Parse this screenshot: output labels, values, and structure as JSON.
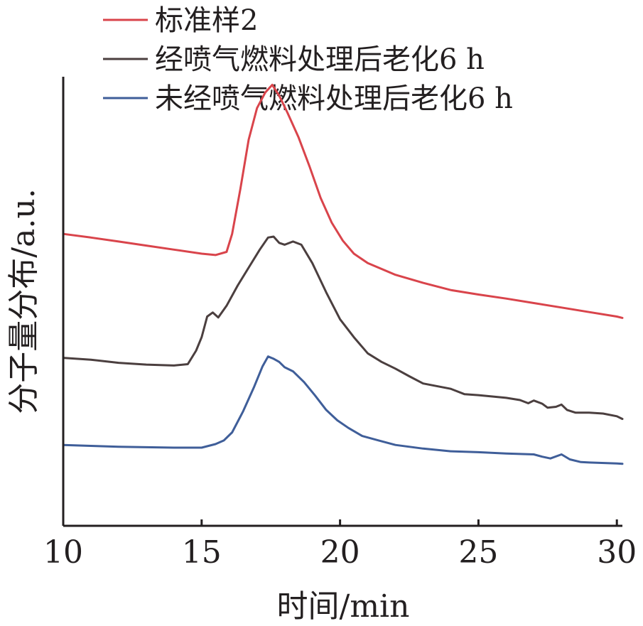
{
  "chart_data": {
    "type": "line",
    "title": "",
    "xlabel": "时间/min",
    "ylabel": "分子量分布/a.u.",
    "xlim": [
      10,
      30.2
    ],
    "ylim": [
      0,
      100
    ],
    "xticks": [
      10,
      15,
      20,
      25,
      30
    ],
    "y_ticks_shown": false,
    "grid": false,
    "legend_position": "top-left",
    "series": [
      {
        "name": "标准样2",
        "color": "#d9444b",
        "x": [
          10,
          11,
          12,
          13,
          14,
          15,
          15.5,
          15.9,
          16.1,
          16.4,
          16.7,
          17.0,
          17.3,
          17.55,
          17.8,
          18.1,
          18.5,
          18.9,
          19.3,
          19.7,
          20.1,
          20.5,
          21,
          22,
          23,
          24,
          25,
          26,
          27,
          28,
          29,
          30,
          30.2
        ],
        "y": [
          65.0,
          64.2,
          63.3,
          62.4,
          61.5,
          60.6,
          60.3,
          61.0,
          65.0,
          75.0,
          86.0,
          93.0,
          96.5,
          98.2,
          95.8,
          92.0,
          86.5,
          80.0,
          73.0,
          67.5,
          63.5,
          60.6,
          58.5,
          55.9,
          54.1,
          52.5,
          51.5,
          50.6,
          49.6,
          48.6,
          47.6,
          46.6,
          46.3
        ]
      },
      {
        "name": "经喷气燃料处理后老化6 h",
        "color": "#4b3f3f",
        "x": [
          10,
          11,
          12,
          13,
          14,
          14.5,
          14.8,
          15.0,
          15.2,
          15.4,
          15.6,
          15.9,
          16.3,
          16.7,
          17.1,
          17.4,
          17.6,
          17.8,
          18.0,
          18.3,
          18.6,
          19.0,
          19.5,
          20.0,
          20.5,
          21,
          21.5,
          22,
          22.5,
          23,
          24,
          24.5,
          25,
          25.5,
          26,
          26.5,
          26.8,
          27.0,
          27.3,
          27.5,
          27.8,
          28.0,
          28.2,
          28.5,
          29,
          29.5,
          30,
          30.2
        ],
        "y": [
          37.4,
          37.0,
          36.3,
          35.9,
          35.7,
          36.0,
          39.0,
          42.0,
          46.6,
          47.5,
          46.4,
          49.0,
          53.5,
          57.5,
          61.5,
          64.2,
          64.4,
          63.0,
          62.6,
          63.3,
          62.6,
          58.5,
          52.0,
          46.0,
          42.0,
          38.4,
          36.5,
          35.0,
          33.3,
          31.7,
          30.5,
          29.3,
          29.1,
          28.8,
          28.5,
          28.0,
          27.3,
          27.9,
          27.2,
          26.3,
          26.5,
          27.0,
          25.8,
          25.2,
          25.2,
          25.0,
          24.4,
          23.8
        ]
      },
      {
        "name": "未经喷气燃料处理后老化6 h",
        "color": "#3f5e99",
        "x": [
          10,
          11,
          12,
          13,
          14,
          15,
          15.5,
          15.8,
          16.1,
          16.5,
          16.9,
          17.2,
          17.4,
          17.6,
          17.8,
          18.0,
          18.3,
          18.7,
          19.1,
          19.5,
          19.9,
          20.3,
          20.8,
          21.4,
          22,
          23,
          24,
          25,
          26,
          27,
          27.3,
          27.6,
          28.0,
          28.3,
          28.7,
          29,
          30,
          30.2
        ],
        "y": [
          18.0,
          17.8,
          17.6,
          17.5,
          17.4,
          17.4,
          18.2,
          19.0,
          20.8,
          25.5,
          31.0,
          35.5,
          37.7,
          37.2,
          36.5,
          35.3,
          34.4,
          32.0,
          29.0,
          25.8,
          23.5,
          21.8,
          20.0,
          19.0,
          18.0,
          17.2,
          16.6,
          16.4,
          16.1,
          15.9,
          15.4,
          15.0,
          15.9,
          14.8,
          14.2,
          14.1,
          13.9,
          13.8
        ]
      }
    ]
  }
}
